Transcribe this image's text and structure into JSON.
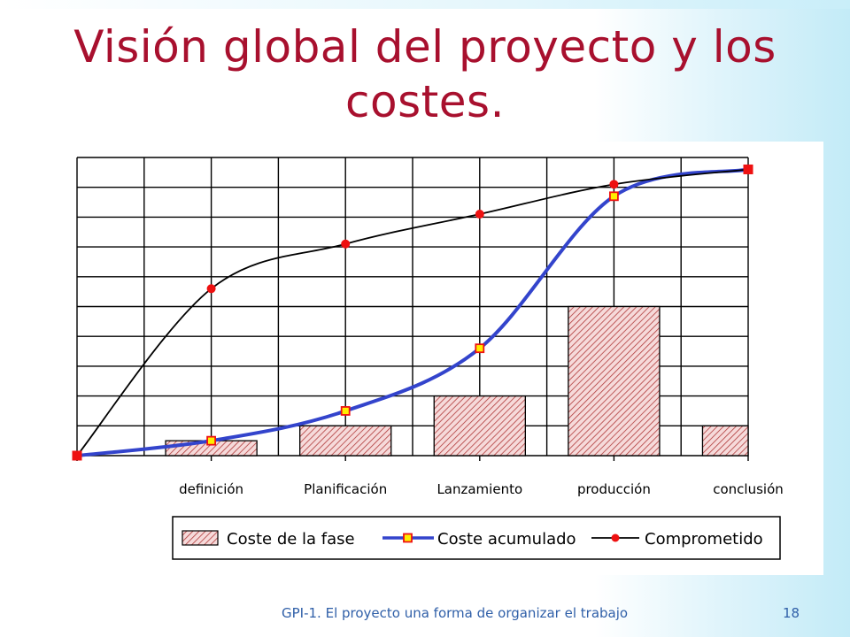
{
  "slide": {
    "title": "Visión global del proyecto y los costes.",
    "footer": "GPI-1. El proyecto una forma de organizar el trabajo",
    "page_number": "18"
  },
  "chart_data": {
    "type": "bar",
    "categories": [
      "definición",
      "Planificación",
      "Lanzamiento",
      "producción",
      "conclusión"
    ],
    "grid": true,
    "ylim": [
      0,
      10
    ],
    "legend": "bottom",
    "series": [
      {
        "name": "Coste de la fase",
        "type": "bar",
        "pattern": "hatched",
        "color": "#c0504d",
        "values": [
          0.5,
          1,
          2,
          5,
          1
        ]
      },
      {
        "name": "Coste acumulado",
        "type": "line",
        "color": "#3344cc",
        "marker": "square",
        "x": [
          0,
          1,
          2,
          3,
          4,
          5
        ],
        "values": [
          0,
          0.5,
          1.5,
          3.6,
          8.7,
          9.6
        ]
      },
      {
        "name": "Comprometido",
        "type": "line",
        "color": "#000000",
        "marker": "circle",
        "marker_color": "#ee1111",
        "x": [
          0,
          1,
          2,
          3,
          4,
          5
        ],
        "values": [
          0,
          5.6,
          7.1,
          8.1,
          9.1,
          9.6
        ]
      }
    ]
  }
}
